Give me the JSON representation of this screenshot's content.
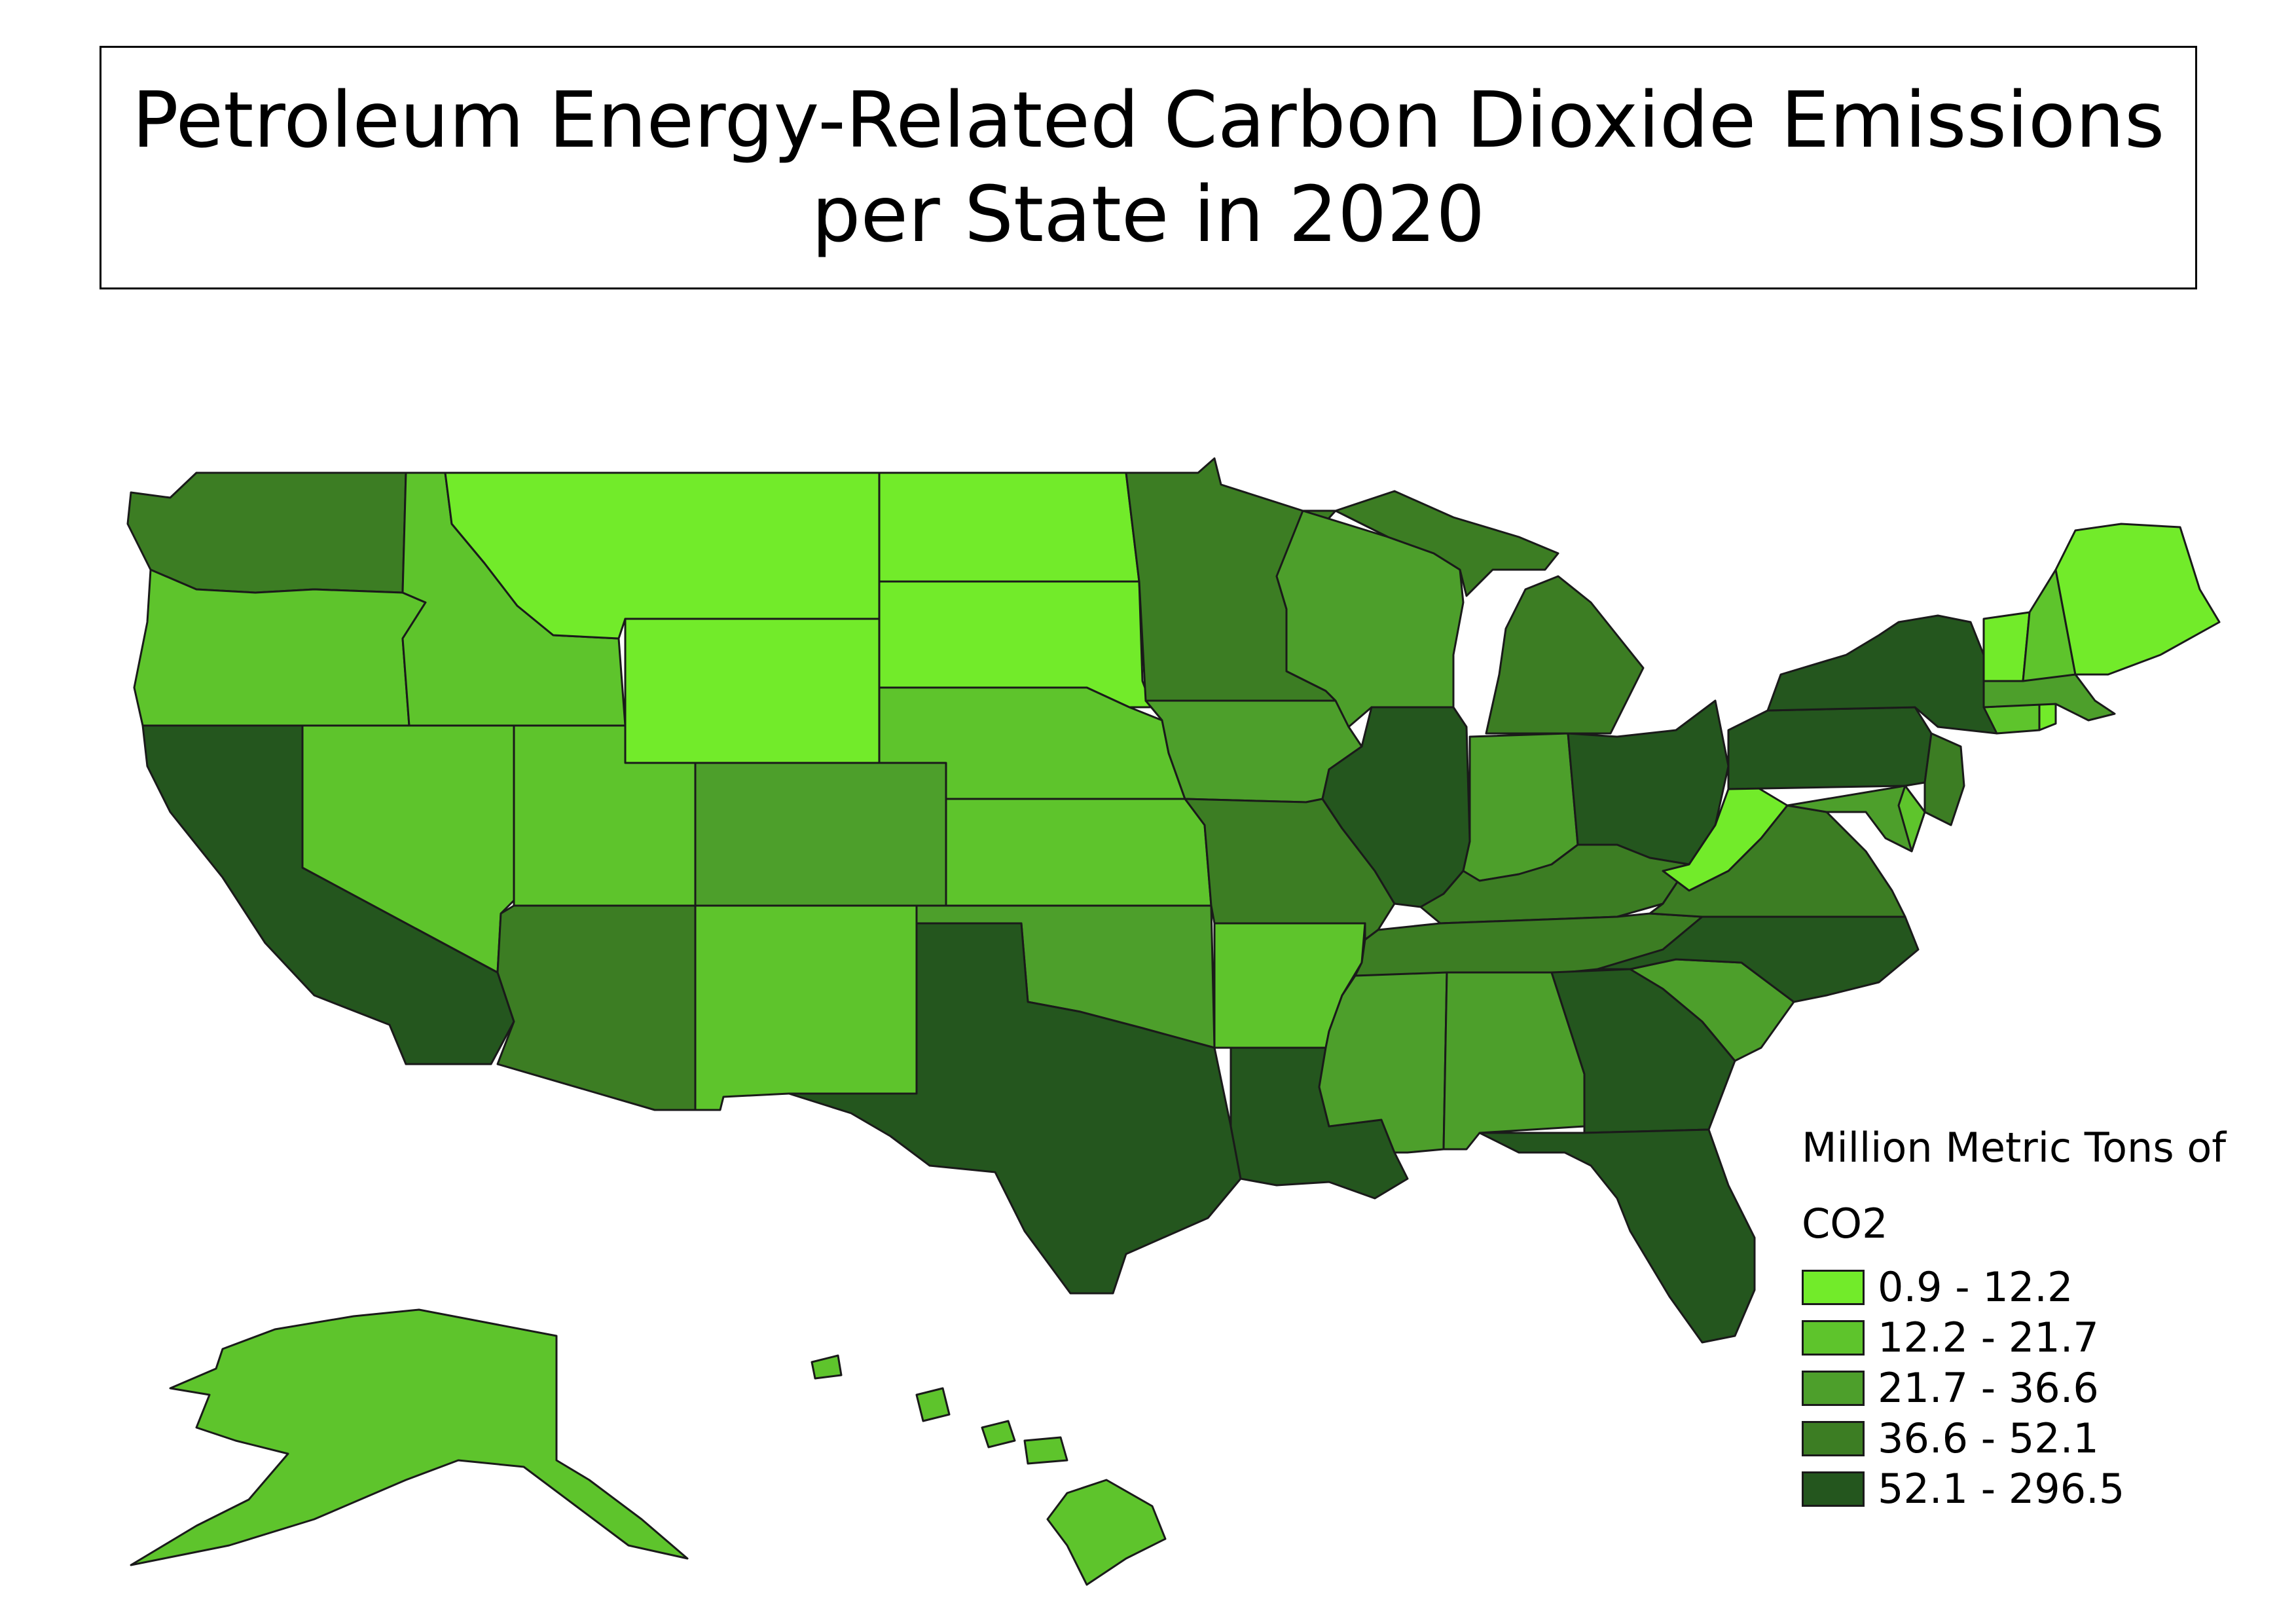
{
  "title": "Petroleum Energy-Related Carbon Dioxide Emissions per State in 2020",
  "legend": {
    "title": "Million Metric Tons of CO2",
    "classes": [
      {
        "label": "0.9 - 12.2",
        "color": "#72eb2a"
      },
      {
        "label": "12.2 - 21.7",
        "color": "#5ec42c"
      },
      {
        "label": "21.7 - 36.6",
        "color": "#4d9f2b"
      },
      {
        "label": "36.6 - 52.1",
        "color": "#3c7d23"
      },
      {
        "label": "52.1 - 296.5",
        "color": "#24561e"
      }
    ]
  },
  "map_data": {
    "type": "choropleth",
    "region": "United States",
    "year": "2020",
    "class_by_state": {
      "Washington": 3,
      "Oregon": 1,
      "California": 4,
      "Nevada": 1,
      "Idaho": 1,
      "Montana": 0,
      "Wyoming": 0,
      "Utah": 1,
      "Arizona": 3,
      "Colorado": 2,
      "New Mexico": 1,
      "North Dakota": 0,
      "South Dakota": 0,
      "Nebraska": 1,
      "Kansas": 1,
      "Oklahoma": 2,
      "Texas": 4,
      "Minnesota": 3,
      "Iowa": 2,
      "Missouri": 3,
      "Arkansas": 1,
      "Louisiana": 4,
      "Wisconsin": 2,
      "Illinois": 4,
      "Michigan": 3,
      "Indiana": 2,
      "Ohio": 4,
      "Kentucky": 3,
      "Tennessee": 3,
      "Mississippi": 2,
      "Alabama": 2,
      "Georgia": 4,
      "Florida": 4,
      "South Carolina": 2,
      "North Carolina": 4,
      "Virginia": 3,
      "West Virginia": 0,
      "Pennsylvania": 4,
      "New York": 4,
      "New Jersey": 3,
      "Maryland": 2,
      "Delaware": 1,
      "Connecticut": 1,
      "Rhode Island": 0,
      "Massachusetts": 2,
      "Vermont": 0,
      "New Hampshire": 1,
      "Maine": 0,
      "Alaska": 1,
      "Hawaii": 1
    }
  }
}
